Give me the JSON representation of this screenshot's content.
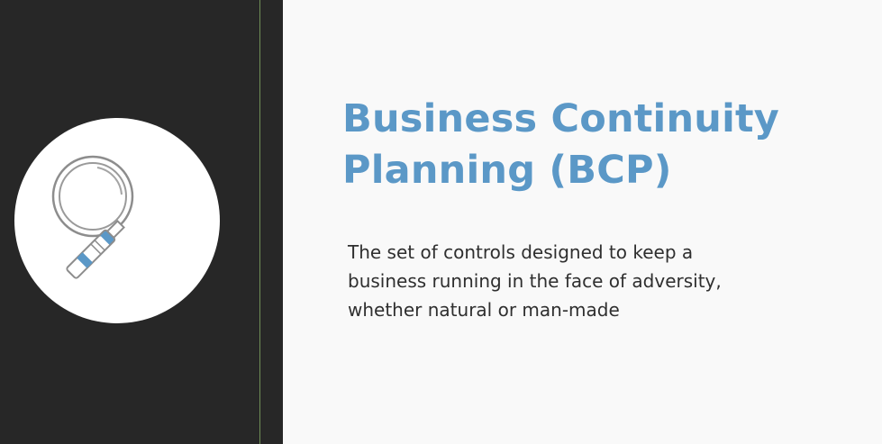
{
  "slide": {
    "title_lines": [
      "Business Continuity",
      "Planning (BCP)"
    ],
    "description_lines": [
      "The set of controls designed to keep a",
      "business running in the face of adversity,",
      "whether natural or man-made"
    ]
  },
  "icon": {
    "name": "magnifying-glass-icon",
    "outline_color": "#8d8d8d",
    "accent_color": "#5b98c7"
  },
  "colors": {
    "left_panel": "#272727",
    "title": "#5b98c7",
    "body_text": "#2f2f2f",
    "divider": "#6f8e57"
  }
}
